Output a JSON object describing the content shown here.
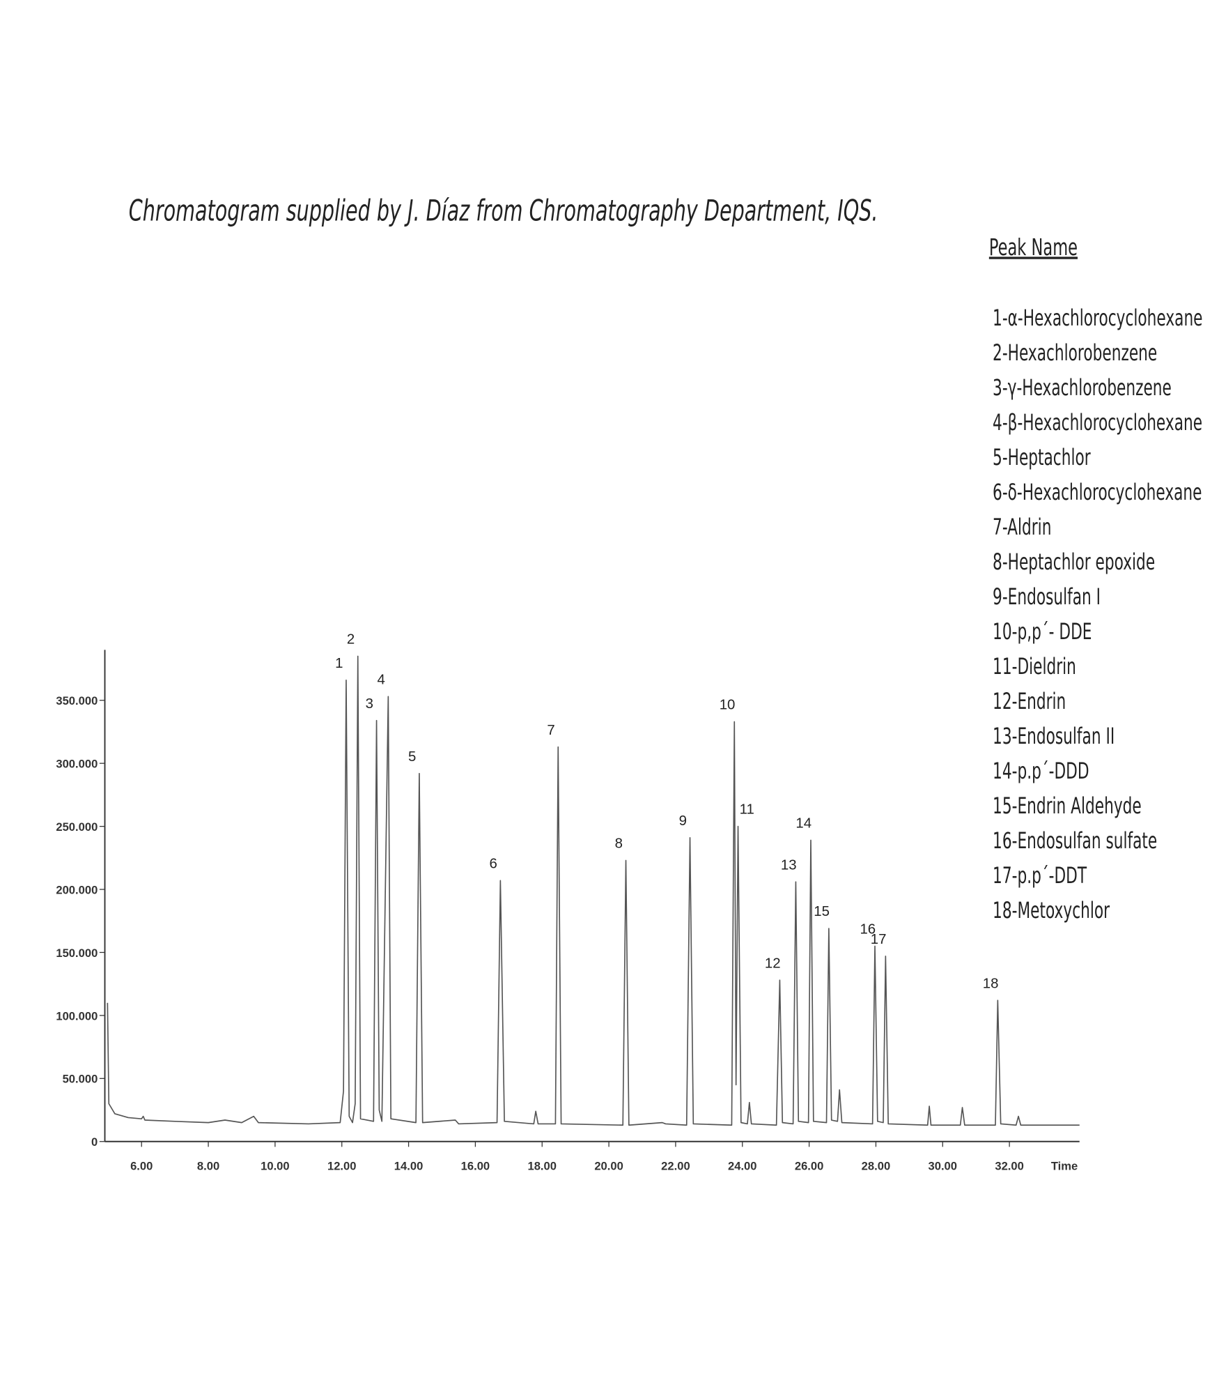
{
  "chart_data": {
    "type": "line",
    "title": "Chromatogram supplied by J. Díaz from Chromatography Department, IQS.",
    "x_label": "Time",
    "xlim": [
      4.9,
      34.1
    ],
    "ylim": [
      0,
      390000
    ],
    "xticks": [
      {
        "value": 6,
        "label": "6.00"
      },
      {
        "value": 8,
        "label": "8.00"
      },
      {
        "value": 10,
        "label": "10.00"
      },
      {
        "value": 12,
        "label": "12.00"
      },
      {
        "value": 14,
        "label": "14.00"
      },
      {
        "value": 16,
        "label": "16.00"
      },
      {
        "value": 18,
        "label": "18.00"
      },
      {
        "value": 20,
        "label": "20.00"
      },
      {
        "value": 22,
        "label": "22.00"
      },
      {
        "value": 24,
        "label": "24.00"
      },
      {
        "value": 26,
        "label": "26.00"
      },
      {
        "value": 28,
        "label": "28.00"
      },
      {
        "value": 30,
        "label": "30.00"
      },
      {
        "value": 32,
        "label": "32.00"
      }
    ],
    "yticks": [
      0,
      {
        "value": 50000,
        "label": "50.000"
      },
      {
        "value": 100000,
        "label": "100.000"
      },
      {
        "value": 150000,
        "label": "150.000"
      },
      {
        "value": 200000,
        "label": "200.000"
      },
      {
        "value": 250000,
        "label": "250.000"
      },
      {
        "value": 300000,
        "label": "300.000"
      },
      {
        "value": 350000,
        "label": "350.000"
      }
    ],
    "color": "#555555",
    "x": [
      4.98,
      5.02,
      5.2,
      5.6,
      6.0,
      6.05,
      6.1,
      7.0,
      8.0,
      8.5,
      9.0,
      9.36,
      9.5,
      11.0,
      11.95,
      12.05,
      12.13,
      12.22,
      12.32,
      12.4,
      12.48,
      12.56,
      12.95,
      13.04,
      13.12,
      13.2,
      13.39,
      13.47,
      14.22,
      14.32,
      14.42,
      15.4,
      15.5,
      16.65,
      16.75,
      16.87,
      17.75,
      17.81,
      17.88,
      18.4,
      18.48,
      18.57,
      20.42,
      20.51,
      20.6,
      21.6,
      21.7,
      22.33,
      22.43,
      22.53,
      23.68,
      23.76,
      23.81,
      23.87,
      23.96,
      24.15,
      24.21,
      24.27,
      25.02,
      25.12,
      25.2,
      25.52,
      25.6,
      25.68,
      25.98,
      26.05,
      26.13,
      26.52,
      26.59,
      26.67,
      26.85,
      26.91,
      26.98,
      27.9,
      27.97,
      28.05,
      28.22,
      28.29,
      28.37,
      29.55,
      29.6,
      29.65,
      30.53,
      30.59,
      30.66,
      31.58,
      31.65,
      31.74,
      32.2,
      32.27,
      32.34,
      34.1
    ],
    "values": [
      110000,
      30000,
      22000,
      19000,
      18000,
      20000,
      17000,
      16000,
      15000,
      17000,
      15000,
      20000,
      15000,
      14000,
      15000,
      40000,
      366000,
      20000,
      15000,
      30000,
      385000,
      18000,
      16000,
      334000,
      25000,
      16000,
      353000,
      18000,
      15000,
      292000,
      15000,
      17000,
      14000,
      15000,
      207000,
      16000,
      14000,
      24000,
      14000,
      14000,
      313000,
      14000,
      13000,
      223000,
      13000,
      15000,
      14000,
      13000,
      241000,
      14000,
      13000,
      333000,
      45000,
      250000,
      15000,
      14000,
      31000,
      14000,
      13000,
      128000,
      15000,
      14000,
      206000,
      16000,
      15000,
      239000,
      16000,
      15000,
      169000,
      17000,
      16000,
      41000,
      15000,
      14000,
      155000,
      16000,
      15000,
      147000,
      14000,
      13000,
      28000,
      13000,
      13000,
      27000,
      13000,
      13000,
      112000,
      14000,
      13000,
      20000,
      13000,
      13000
    ],
    "peaks": [
      {
        "label": "1",
        "x": 12.13,
        "value": 366000
      },
      {
        "label": "2",
        "x": 12.48,
        "value": 385000
      },
      {
        "label": "3",
        "x": 13.04,
        "value": 334000
      },
      {
        "label": "4",
        "x": 13.39,
        "value": 353000
      },
      {
        "label": "5",
        "x": 14.32,
        "value": 292000
      },
      {
        "label": "6",
        "x": 16.75,
        "value": 207000
      },
      {
        "label": "7",
        "x": 18.48,
        "value": 313000
      },
      {
        "label": "8",
        "x": 20.51,
        "value": 223000
      },
      {
        "label": "9",
        "x": 22.43,
        "value": 241000
      },
      {
        "label": "10",
        "x": 23.76,
        "value": 333000
      },
      {
        "label": "11",
        "x": 23.87,
        "value": 250000
      },
      {
        "label": "12",
        "x": 25.12,
        "value": 128000
      },
      {
        "label": "13",
        "x": 25.6,
        "value": 206000
      },
      {
        "label": "14",
        "x": 26.05,
        "value": 239000
      },
      {
        "label": "15",
        "x": 26.59,
        "value": 169000
      },
      {
        "label": "16",
        "x": 27.97,
        "value": 155000
      },
      {
        "label": "17",
        "x": 28.29,
        "value": 147000
      },
      {
        "label": "18",
        "x": 31.65,
        "value": 112000
      }
    ],
    "legend_title": "Peak Name",
    "peak_names": [
      "1-α-Hexachlorocyclohexane",
      "2-Hexachlorobenzene",
      "3-γ-Hexachlorobenzene",
      "4-β-Hexachlorocyclohexane",
      "5-Heptachlor",
      "6-δ-Hexachlorocyclohexane",
      "7-Aldrin",
      "8-Heptachlor epoxide",
      "9-Endosulfan I",
      "10-p,p´- DDE",
      "11-Dieldrin",
      "12-Endrin",
      "13-Endosulfan II",
      "14-p.p´-DDD",
      "15-Endrin Aldehyde",
      "16-Endosulfan sulfate",
      "17-p.p´-DDT",
      "18-Metoxychlor"
    ]
  }
}
